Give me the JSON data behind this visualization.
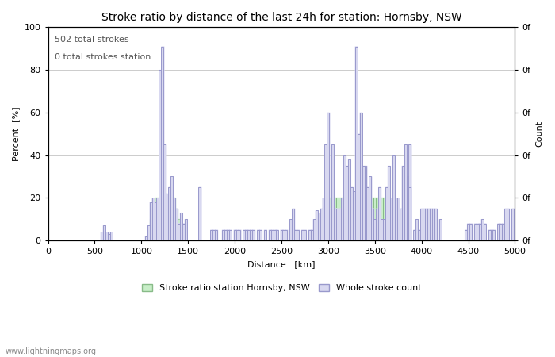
{
  "title": "Stroke ratio by distance of the last 24h for station: Hornsby, NSW",
  "annotation_line1": "502 total strokes",
  "annotation_line2": "0 total strokes station",
  "xlabel": "Distance   [km]",
  "ylabel_left": "Percent  [%]",
  "ylabel_right": "Count",
  "xlim": [
    0,
    5000
  ],
  "ylim": [
    0,
    100
  ],
  "xticks": [
    0,
    500,
    1000,
    1500,
    2000,
    2500,
    3000,
    3500,
    4000,
    4500,
    5000
  ],
  "yticks_left": [
    0,
    20,
    40,
    60,
    80,
    100
  ],
  "yticks_right_labels": [
    "0f",
    "0f",
    "0f",
    "0f",
    "0f",
    "0f"
  ],
  "watermark": "www.lightningmaps.org",
  "legend_label1": "Stroke ratio station Hornsby, NSW",
  "legend_label2": "Whole stroke count",
  "color_green": "#c8eec8",
  "color_blue_fill": "#d8d8f0",
  "color_blue_line": "#9999cc",
  "background_color": "#ffffff",
  "grid_color": "#cccccc",
  "title_fontsize": 10,
  "tick_fontsize": 8,
  "label_fontsize": 8,
  "annotation_fontsize": 8
}
